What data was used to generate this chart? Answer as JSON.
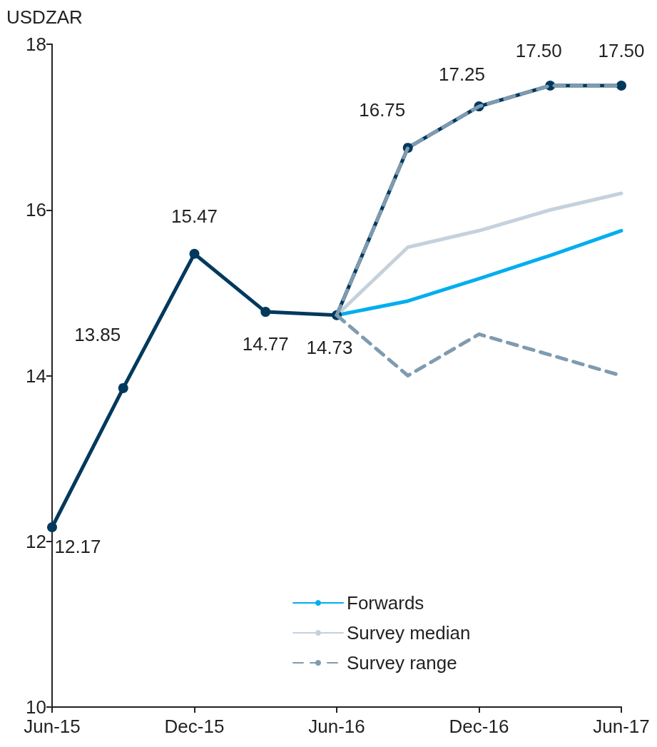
{
  "chart_data": {
    "type": "line",
    "ylabel": "USDZAR",
    "categories": [
      "Jun-15",
      null,
      "Dec-15",
      null,
      "Jun-16",
      null,
      "Dec-16",
      null,
      "Jun-17"
    ],
    "ylim": [
      10,
      18
    ],
    "yticks": [
      10,
      12,
      14,
      16,
      18
    ],
    "grid": false,
    "legend": "bottom",
    "series": [
      {
        "color": "#00395d",
        "marker": "circle",
        "line_style": "solid",
        "values": [
          12.17,
          13.85,
          15.47,
          14.77,
          14.73,
          16.75,
          17.25,
          17.5,
          17.5
        ],
        "value_labels": [
          "12.17",
          "13.85",
          "15.47",
          "14.77",
          "14.73",
          "16.75",
          "17.25",
          "17.50",
          "17.50"
        ]
      },
      {
        "name": "Forwards",
        "color": "#00aeef",
        "marker": "none",
        "line_style": "solid",
        "values": [
          null,
          null,
          null,
          null,
          14.73,
          14.9,
          15.17,
          15.45,
          15.75
        ]
      },
      {
        "name": "Survey median",
        "color": "#c5d1dc",
        "marker": "none",
        "line_style": "solid",
        "values": [
          null,
          null,
          null,
          null,
          14.73,
          15.55,
          15.75,
          16.0,
          16.2
        ]
      },
      {
        "name": "Survey range",
        "color": "#7f9bb0",
        "marker": "none",
        "line_style": "dashed",
        "values": [
          null,
          null,
          null,
          null,
          14.73,
          16.75,
          17.25,
          17.5,
          17.5
        ]
      },
      {
        "color": "#7f9bb0",
        "marker": "none",
        "line_style": "dashed",
        "values": [
          null,
          null,
          null,
          null,
          14.73,
          14.0,
          14.5,
          14.25,
          14.0
        ]
      }
    ]
  }
}
